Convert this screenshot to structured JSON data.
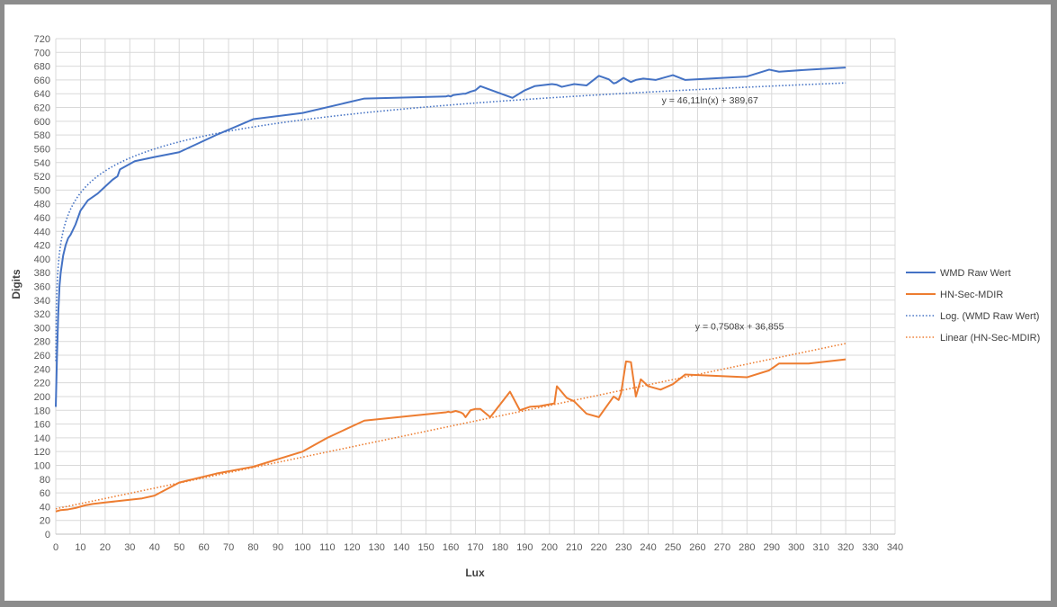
{
  "chart_data": {
    "type": "line",
    "title": "",
    "xlabel": "Lux",
    "ylabel": "Digits",
    "xlim": [
      0,
      340
    ],
    "ylim": [
      0,
      720
    ],
    "xticks": [
      0,
      10,
      20,
      30,
      40,
      50,
      60,
      70,
      80,
      90,
      100,
      110,
      120,
      130,
      140,
      150,
      160,
      170,
      180,
      190,
      200,
      210,
      220,
      230,
      240,
      250,
      260,
      270,
      280,
      290,
      300,
      310,
      320,
      330,
      340
    ],
    "yticks": [
      0,
      20,
      40,
      60,
      80,
      100,
      120,
      140,
      160,
      180,
      200,
      220,
      240,
      260,
      280,
      300,
      320,
      340,
      360,
      380,
      400,
      420,
      440,
      460,
      480,
      500,
      520,
      540,
      560,
      580,
      600,
      620,
      640,
      660,
      680,
      700,
      720
    ],
    "grid": true,
    "legend_position": "right",
    "series": [
      {
        "name": "WMD Raw Wert",
        "color": "#4472c4",
        "style": "solid",
        "x": [
          0,
          0.5,
          1,
          1.5,
          2,
          3,
          4,
          5,
          6,
          8,
          10,
          13,
          17,
          20,
          23,
          25,
          26,
          32,
          40,
          50,
          65,
          80,
          100,
          125,
          158,
          159,
          160,
          161,
          163,
          165,
          166,
          168,
          170,
          172,
          185,
          190,
          194,
          201,
          203,
          205,
          210,
          215,
          220,
          224,
          226,
          227,
          230,
          233,
          235,
          238,
          243,
          250,
          255,
          280,
          289,
          293,
          305,
          320
        ],
        "y": [
          185,
          260,
          320,
          360,
          380,
          405,
          420,
          430,
          435,
          450,
          470,
          485,
          495,
          505,
          515,
          520,
          530,
          542,
          548,
          555,
          580,
          603,
          612,
          633,
          636,
          637,
          636,
          638,
          639,
          640,
          640,
          643,
          645,
          651,
          634,
          645,
          651,
          654,
          653,
          650,
          654,
          652,
          666,
          661,
          655,
          656,
          663,
          657,
          660,
          662,
          660,
          667,
          660,
          665,
          675,
          672,
          675,
          678
        ]
      },
      {
        "name": "HN-Sec-MDIR",
        "color": "#ed7d31",
        "style": "solid",
        "x": [
          0,
          2,
          5,
          8,
          10,
          12,
          15,
          20,
          25,
          30,
          35,
          40,
          50,
          65,
          80,
          100,
          110,
          125,
          158,
          159,
          160,
          162,
          164,
          165,
          166,
          168,
          170,
          172,
          176,
          184,
          188,
          192,
          196,
          202,
          203,
          207,
          210,
          215,
          220,
          222,
          224,
          226,
          228,
          229,
          231,
          233,
          235,
          237,
          240,
          245,
          250,
          255,
          280,
          289,
          293,
          305,
          320
        ],
        "y": [
          33,
          35,
          36,
          38,
          40,
          42,
          44,
          46,
          48,
          50,
          52,
          56,
          75,
          88,
          98,
          120,
          140,
          165,
          177,
          178,
          177,
          179,
          177,
          175,
          170,
          180,
          182,
          182,
          170,
          207,
          180,
          185,
          186,
          190,
          215,
          198,
          193,
          175,
          170,
          180,
          190,
          200,
          195,
          205,
          251,
          250,
          200,
          225,
          215,
          210,
          218,
          232,
          228,
          238,
          248,
          248,
          254
        ]
      },
      {
        "name": "Log. (WMD Raw Wert)",
        "color": "#4472c4",
        "style": "dotted",
        "trend": "log",
        "coef": [
          46.11,
          389.67
        ],
        "x_range": [
          0.05,
          320
        ]
      },
      {
        "name": "Linear (HN-Sec-MDIR)",
        "color": "#ed7d31",
        "style": "dotted",
        "trend": "linear",
        "coef": [
          0.7508,
          36.855
        ],
        "x_range": [
          0,
          320
        ]
      }
    ],
    "annotations": [
      {
        "text": "y = 46,11ln(x) + 389,67",
        "x": 265,
        "y": 626,
        "color": "#404040"
      },
      {
        "text": "y = 0,7508x + 36,855",
        "x": 277,
        "y": 297,
        "color": "#404040"
      }
    ]
  }
}
